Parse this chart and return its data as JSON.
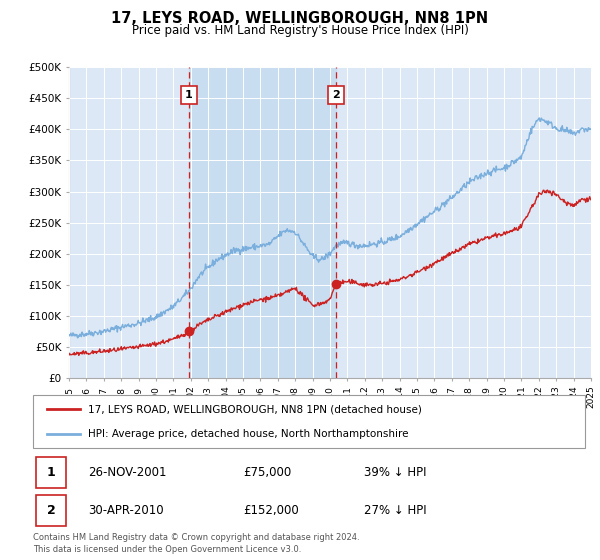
{
  "title": "17, LEYS ROAD, WELLINGBOROUGH, NN8 1PN",
  "subtitle": "Price paid vs. HM Land Registry's House Price Index (HPI)",
  "ylim": [
    0,
    500000
  ],
  "yticks": [
    0,
    50000,
    100000,
    150000,
    200000,
    250000,
    300000,
    350000,
    400000,
    450000,
    500000
  ],
  "ytick_labels": [
    "£0",
    "£50K",
    "£100K",
    "£150K",
    "£200K",
    "£250K",
    "£300K",
    "£350K",
    "£400K",
    "£450K",
    "£500K"
  ],
  "background_color": "#ffffff",
  "plot_bg_color": "#dce8f5",
  "grid_color": "#ffffff",
  "hpi_line_color": "#7aaedc",
  "sale_line_color": "#cc2222",
  "sale_dot_color": "#cc2222",
  "vline_color": "#cc2222",
  "vline_shade_color": "#c8ddf0",
  "annotation_box_color": "#cc2222",
  "sale1_x": 2001.9,
  "sale1_y": 75000,
  "sale1_label": "1",
  "sale1_date": "26-NOV-2001",
  "sale1_price": "£75,000",
  "sale1_hpi": "39% ↓ HPI",
  "sale2_x": 2010.33,
  "sale2_y": 152000,
  "sale2_label": "2",
  "sale2_date": "30-APR-2010",
  "sale2_price": "£152,000",
  "sale2_hpi": "27% ↓ HPI",
  "legend_label1": "17, LEYS ROAD, WELLINGBOROUGH, NN8 1PN (detached house)",
  "legend_label2": "HPI: Average price, detached house, North Northamptonshire",
  "footer1": "Contains HM Land Registry data © Crown copyright and database right 2024.",
  "footer2": "This data is licensed under the Open Government Licence v3.0.",
  "xmin": 1995,
  "xmax": 2025
}
